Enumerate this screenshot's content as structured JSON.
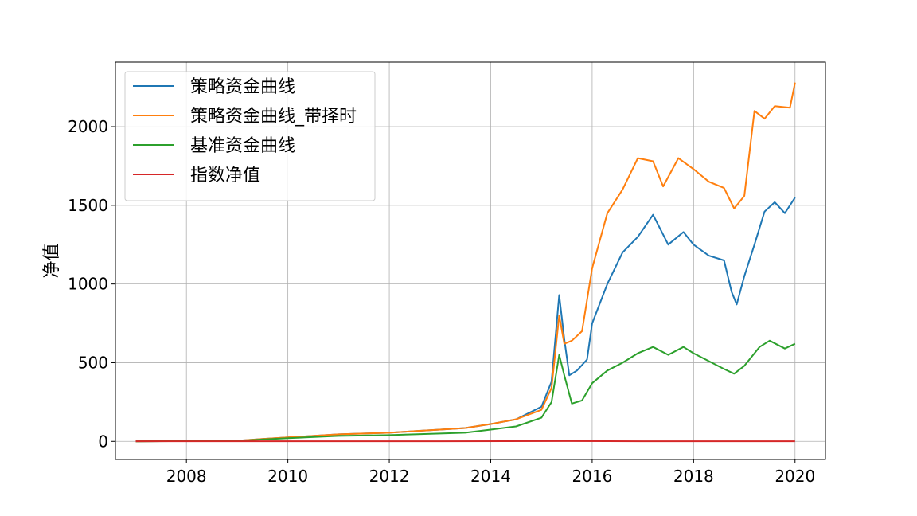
{
  "chart_data": {
    "type": "line",
    "title": "",
    "xlabel": "",
    "ylabel": "净值",
    "xlim": [
      2006.6,
      2020.6
    ],
    "ylim": [
      -115,
      2410
    ],
    "x_ticks": [
      2008,
      2010,
      2012,
      2014,
      2016,
      2018,
      2020
    ],
    "y_ticks": [
      0,
      500,
      1000,
      1500,
      2000
    ],
    "grid": true,
    "legend_position": "top-left",
    "series": [
      {
        "name": "策略资金曲线",
        "color": "#1f77b4",
        "x": [
          2007.0,
          2008.0,
          2009.0,
          2009.5,
          2010.0,
          2011.0,
          2012.0,
          2012.5,
          2013.0,
          2013.5,
          2014.0,
          2014.5,
          2015.0,
          2015.2,
          2015.35,
          2015.45,
          2015.55,
          2015.7,
          2015.9,
          2016.0,
          2016.3,
          2016.6,
          2016.9,
          2017.2,
          2017.5,
          2017.8,
          2018.0,
          2018.3,
          2018.6,
          2018.75,
          2018.85,
          2019.0,
          2019.2,
          2019.4,
          2019.6,
          2019.8,
          2020.0
        ],
        "values": [
          0,
          3,
          4,
          15,
          25,
          45,
          55,
          65,
          75,
          85,
          110,
          140,
          220,
          380,
          930,
          650,
          420,
          450,
          520,
          750,
          1000,
          1200,
          1300,
          1440,
          1250,
          1330,
          1250,
          1180,
          1150,
          950,
          870,
          1050,
          1250,
          1460,
          1520,
          1450,
          1550
        ]
      },
      {
        "name": "策略资金曲线_带择时",
        "color": "#ff7f0e",
        "x": [
          2007.0,
          2008.0,
          2009.0,
          2009.5,
          2010.0,
          2011.0,
          2012.0,
          2012.5,
          2013.0,
          2013.5,
          2014.0,
          2014.5,
          2015.0,
          2015.2,
          2015.35,
          2015.45,
          2015.6,
          2015.8,
          2016.0,
          2016.3,
          2016.6,
          2016.9,
          2017.2,
          2017.4,
          2017.7,
          2018.0,
          2018.3,
          2018.6,
          2018.8,
          2019.0,
          2019.2,
          2019.4,
          2019.6,
          2019.9,
          2020.0
        ],
        "values": [
          0,
          3,
          4,
          15,
          25,
          45,
          55,
          65,
          75,
          85,
          110,
          140,
          200,
          340,
          800,
          620,
          640,
          700,
          1100,
          1450,
          1600,
          1800,
          1780,
          1620,
          1800,
          1730,
          1650,
          1610,
          1480,
          1560,
          2100,
          2050,
          2130,
          2120,
          2280
        ]
      },
      {
        "name": "基准资金曲线",
        "color": "#2ca02c",
        "x": [
          2007.0,
          2008.0,
          2009.0,
          2009.5,
          2010.0,
          2011.0,
          2012.0,
          2012.5,
          2013.0,
          2013.5,
          2014.0,
          2014.5,
          2015.0,
          2015.2,
          2015.35,
          2015.45,
          2015.6,
          2015.8,
          2016.0,
          2016.3,
          2016.6,
          2016.9,
          2017.2,
          2017.5,
          2017.8,
          2018.0,
          2018.3,
          2018.6,
          2018.8,
          2019.0,
          2019.3,
          2019.5,
          2019.8,
          2020.0
        ],
        "values": [
          0,
          2,
          3,
          12,
          20,
          35,
          40,
          45,
          50,
          55,
          75,
          95,
          150,
          250,
          550,
          420,
          240,
          260,
          370,
          450,
          500,
          560,
          600,
          550,
          600,
          560,
          510,
          460,
          430,
          480,
          600,
          640,
          590,
          620
        ]
      },
      {
        "name": "指数净值",
        "color": "#d62728",
        "x": [
          2007.0,
          2010.0,
          2013.0,
          2015.5,
          2017.0,
          2020.0
        ],
        "values": [
          1,
          1,
          1,
          2,
          1,
          1
        ]
      }
    ]
  }
}
